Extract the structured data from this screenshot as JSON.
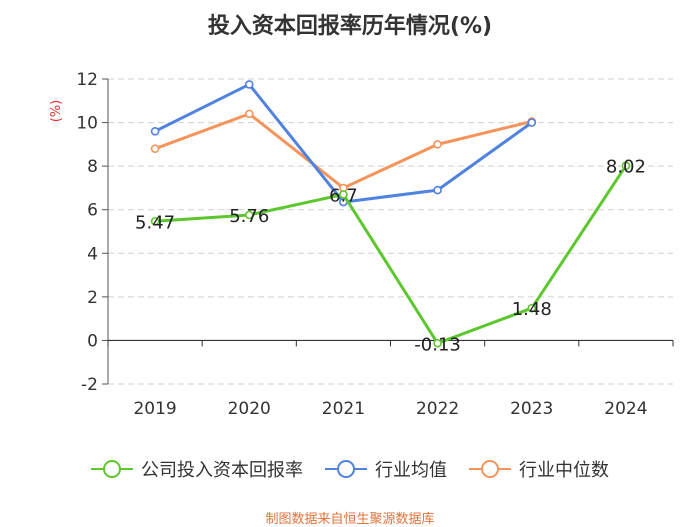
{
  "chart_data": {
    "type": "line",
    "title": "投入资本回报率历年情况(%)",
    "ylabel": "(%)",
    "categories": [
      "2019",
      "2020",
      "2021",
      "2022",
      "2023",
      "2024"
    ],
    "ylim": [
      -2,
      12
    ],
    "yticks": [
      "-2",
      "0",
      "2",
      "4",
      "6",
      "8",
      "10",
      "12"
    ],
    "grid": true,
    "legend_position": "bottom",
    "series": [
      {
        "name": "公司投入资本回报率",
        "color": "#5cc72e",
        "values": [
          5.47,
          5.76,
          6.7,
          -0.13,
          1.48,
          8.02
        ],
        "labels": [
          "5.47",
          "5.76",
          "6.7",
          "-0.13",
          "1.48",
          "8.02"
        ]
      },
      {
        "name": "行业均值",
        "color": "#5082e0",
        "values": [
          9.6,
          11.75,
          6.35,
          6.9,
          10.0,
          null
        ]
      },
      {
        "name": "行业中位数",
        "color": "#f5945a",
        "values": [
          8.8,
          10.4,
          7.0,
          9.0,
          10.05,
          null
        ]
      }
    ]
  },
  "source": {
    "text": "制图数据来自恒生聚源数据库",
    "color": "#e0723a"
  },
  "ylabel_color": "#e03030"
}
